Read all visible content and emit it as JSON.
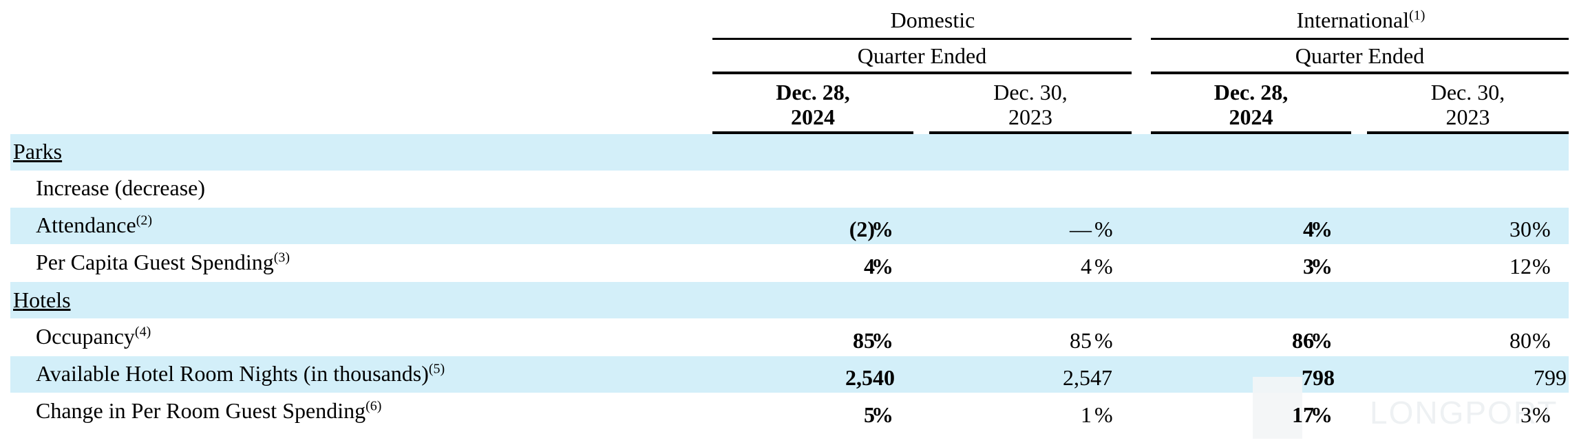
{
  "header": {
    "domestic": "Domestic",
    "international": "International",
    "international_note": "(1)",
    "quarter_ended": "Quarter Ended",
    "columns": [
      {
        "line1": "Dec. 28,",
        "line2": "2024"
      },
      {
        "line1": "Dec. 30,",
        "line2": "2023"
      },
      {
        "line1": "Dec. 28,",
        "line2": "2024"
      },
      {
        "line1": "Dec. 30,",
        "line2": "2023"
      }
    ]
  },
  "sections": {
    "parks": "Parks",
    "hotels": "Hotels"
  },
  "rows": {
    "increase": {
      "label": "Increase (decrease)"
    },
    "attendance": {
      "label": "Attendance",
      "note": "(2)",
      "values": [
        "(2)",
        "—",
        "4",
        "30"
      ],
      "pct": "%"
    },
    "per_capita": {
      "label": "Per Capita Guest Spending",
      "note": "(3)",
      "values": [
        "4",
        "4",
        "3",
        "12"
      ],
      "pct": "%"
    },
    "occupancy": {
      "label": "Occupancy",
      "note": "(4)",
      "values": [
        "85",
        "85",
        "86",
        "80"
      ],
      "pct": "%"
    },
    "room_nights": {
      "label": "Available Hotel Room Nights (in thousands)",
      "note": "(5)",
      "values": [
        "2,540",
        "2,547",
        "798",
        "799"
      ]
    },
    "per_room": {
      "label": "Change in Per Room Guest Spending",
      "note": "(6)",
      "values": [
        "5",
        "1",
        "17",
        "3"
      ],
      "pct": "%"
    }
  },
  "watermark": "LONGPORT"
}
